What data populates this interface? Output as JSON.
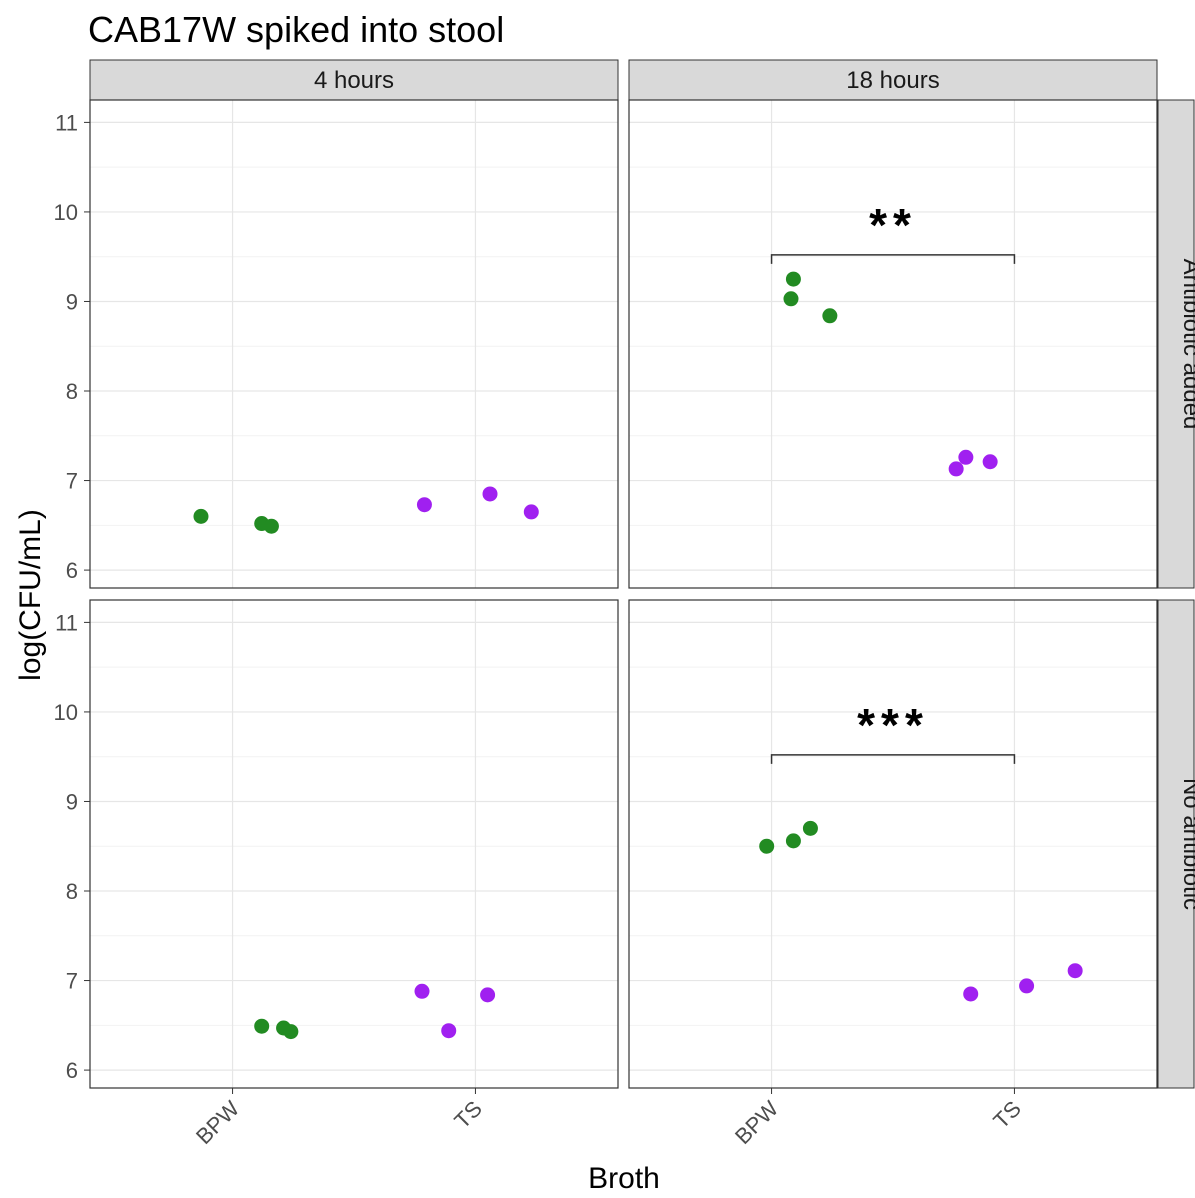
{
  "chart_data": {
    "type": "scatter",
    "title": "CAB17W spiked into stool",
    "xlabel": "Broth",
    "ylabel": "log(CFU/mL)",
    "categories": [
      "BPW",
      "TS"
    ],
    "ylim": [
      5.8,
      11.25
    ],
    "yticks": [
      6,
      7,
      8,
      9,
      10,
      11
    ],
    "grid": true,
    "legend": "none",
    "facet_columns": [
      "4 hours",
      "18 hours"
    ],
    "facet_rows": [
      "Antibiotic added",
      "No antibiotic"
    ],
    "colors": {
      "BPW": "#228B22",
      "TS": "#A020F0"
    },
    "panels": [
      {
        "time": "4 hours",
        "treatment": "Antibiotic added",
        "points": [
          {
            "broth": "BPW",
            "offset": -0.13,
            "y": 6.6
          },
          {
            "broth": "BPW",
            "offset": 0.12,
            "y": 6.52
          },
          {
            "broth": "BPW",
            "offset": 0.16,
            "y": 6.49
          },
          {
            "broth": "TS",
            "offset": -0.21,
            "y": 6.73
          },
          {
            "broth": "TS",
            "offset": 0.06,
            "y": 6.85
          },
          {
            "broth": "TS",
            "offset": 0.23,
            "y": 6.65
          }
        ],
        "significance": ""
      },
      {
        "time": "18 hours",
        "treatment": "Antibiotic added",
        "points": [
          {
            "broth": "BPW",
            "offset": 0.09,
            "y": 9.25
          },
          {
            "broth": "BPW",
            "offset": 0.08,
            "y": 9.03
          },
          {
            "broth": "BPW",
            "offset": 0.24,
            "y": 8.84
          },
          {
            "broth": "TS",
            "offset": -0.24,
            "y": 7.13
          },
          {
            "broth": "TS",
            "offset": -0.2,
            "y": 7.26
          },
          {
            "broth": "TS",
            "offset": -0.1,
            "y": 7.21
          }
        ],
        "significance": "**"
      },
      {
        "time": "4 hours",
        "treatment": "No antibiotic",
        "points": [
          {
            "broth": "BPW",
            "offset": 0.12,
            "y": 6.49
          },
          {
            "broth": "BPW",
            "offset": 0.21,
            "y": 6.47
          },
          {
            "broth": "BPW",
            "offset": 0.24,
            "y": 6.43
          },
          {
            "broth": "TS",
            "offset": -0.22,
            "y": 6.88
          },
          {
            "broth": "TS",
            "offset": -0.11,
            "y": 6.44
          },
          {
            "broth": "TS",
            "offset": 0.05,
            "y": 6.84
          }
        ],
        "significance": ""
      },
      {
        "time": "18 hours",
        "treatment": "No antibiotic",
        "points": [
          {
            "broth": "BPW",
            "offset": -0.02,
            "y": 8.5
          },
          {
            "broth": "BPW",
            "offset": 0.09,
            "y": 8.56
          },
          {
            "broth": "BPW",
            "offset": 0.16,
            "y": 8.7
          },
          {
            "broth": "TS",
            "offset": -0.18,
            "y": 6.85
          },
          {
            "broth": "TS",
            "offset": 0.05,
            "y": 6.94
          },
          {
            "broth": "TS",
            "offset": 0.25,
            "y": 7.11
          }
        ],
        "significance": "***"
      }
    ],
    "bracket_y": 9.52
  }
}
